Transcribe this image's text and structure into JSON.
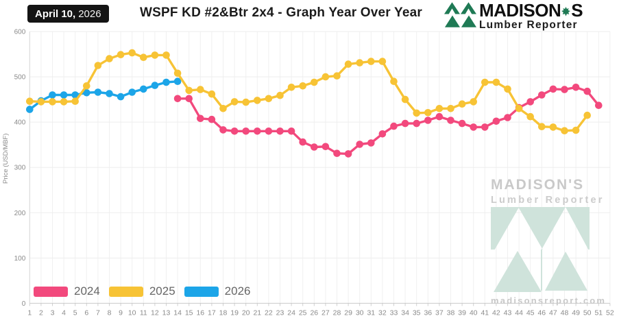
{
  "header": {
    "date_bold": "April 10,",
    "date_year": "2026",
    "title": "WSPF KD #2&Btr 2x4 - Graph Year Over Year",
    "brand": {
      "name_left": "MADISON",
      "name_right": "S",
      "subtitle": "Lumber Reporter"
    }
  },
  "watermark": {
    "name": "MADISON'S",
    "subtitle": "Lumber Reporter",
    "url": "madisonsreport.com"
  },
  "legend": {
    "items": [
      {
        "label": "2024",
        "color": "#F2497D"
      },
      {
        "label": "2025",
        "color": "#F7C335"
      },
      {
        "label": "2026",
        "color": "#1CA5E8"
      }
    ]
  },
  "chart_data": {
    "type": "line",
    "title": "WSPF KD #2&Btr 2x4 - Graph Year Over Year",
    "ylabel": "Price (USD/MBF)",
    "ylim": [
      0,
      600
    ],
    "yticks": [
      0,
      100,
      200,
      300,
      400,
      500,
      600
    ],
    "x_weeks": {
      "first": 1,
      "last": 52
    },
    "grid": true,
    "legend_position": "bottom-left",
    "series": [
      {
        "name": "2024",
        "color": "#F2497D",
        "start_week": 14,
        "values": [
          452,
          452,
          408,
          406,
          383,
          380,
          380,
          380,
          380,
          380,
          380,
          356,
          345,
          346,
          331,
          330,
          351,
          354,
          374,
          391,
          397,
          397,
          404,
          412,
          404,
          397,
          389,
          389,
          402,
          410,
          432,
          445,
          460,
          473,
          472,
          477,
          468,
          437
        ]
      },
      {
        "name": "2026",
        "color": "#1CA5E8",
        "start_week": 1,
        "values": [
          428,
          447,
          460,
          460,
          460,
          465,
          466,
          463,
          456,
          466,
          473,
          481,
          488,
          490
        ]
      },
      {
        "name": "2025",
        "color": "#F7C335",
        "start_week": 1,
        "values": [
          446,
          445,
          445,
          445,
          446,
          480,
          525,
          540,
          549,
          553,
          543,
          548,
          548,
          508,
          470,
          472,
          462,
          430,
          445,
          444,
          448,
          452,
          459,
          477,
          480,
          488,
          500,
          502,
          528,
          531,
          534,
          534,
          490,
          450,
          420,
          421,
          430,
          430,
          440,
          445,
          488,
          488,
          473,
          430,
          412,
          390,
          389,
          381,
          382,
          415
        ]
      }
    ]
  }
}
